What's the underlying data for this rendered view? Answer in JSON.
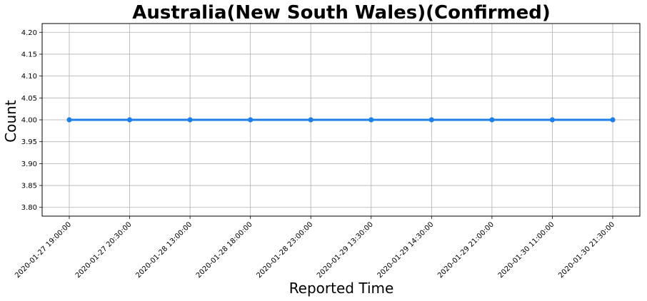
{
  "chart_data": {
    "type": "line",
    "title": "Australia(New South Wales)(Confirmed)",
    "xlabel": "Reported Time",
    "ylabel": "Count",
    "categories": [
      "2020-01-27 19:00:00",
      "2020-01-27 20:30:00",
      "2020-01-28 13:00:00",
      "2020-01-28 18:00:00",
      "2020-01-28 23:00:00",
      "2020-01-29 13:30:00",
      "2020-01-29 14:30:00",
      "2020-01-29 21:00:00",
      "2020-01-30 11:00:00",
      "2020-01-30 21:30:00"
    ],
    "series": [
      {
        "values": [
          4,
          4,
          4,
          4,
          4,
          4,
          4,
          4,
          4,
          4
        ],
        "color": "#1f7fe8"
      }
    ],
    "ylim": [
      3.78,
      4.22
    ],
    "yticks": [
      "3.80",
      "3.85",
      "3.90",
      "3.95",
      "4.00",
      "4.05",
      "4.10",
      "4.15",
      "4.20"
    ],
    "grid": true,
    "legend": "none"
  }
}
